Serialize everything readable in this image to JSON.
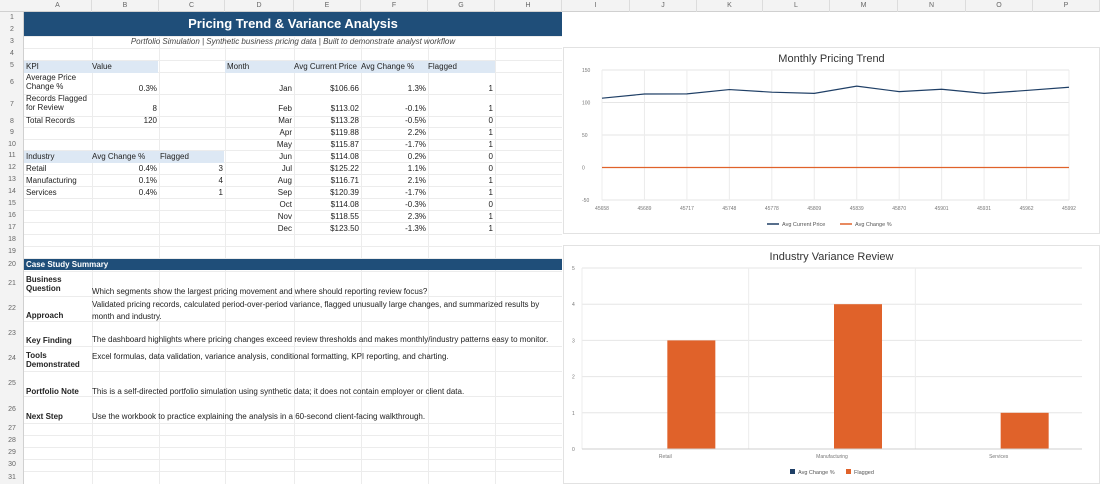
{
  "columns": [
    "A",
    "B",
    "C",
    "D",
    "E",
    "F",
    "G",
    "H",
    "I",
    "J",
    "K",
    "L",
    "M",
    "N",
    "O",
    "P"
  ],
  "rows": [
    "1",
    "2",
    "3",
    "4",
    "5",
    "6",
    "7",
    "8",
    "9",
    "10",
    "11",
    "12",
    "13",
    "14",
    "15",
    "16",
    "17",
    "18",
    "19",
    "20",
    "21",
    "22",
    "23",
    "24",
    "25",
    "26",
    "27",
    "28",
    "29",
    "30",
    "31"
  ],
  "title": "Pricing Trend & Variance Analysis",
  "subtitle": "Portfolio Simulation | Synthetic business pricing data | Built to demonstrate analyst workflow",
  "kpi": {
    "headers": [
      "KPI",
      "Value"
    ],
    "rows": [
      {
        "label": "Average Price Change %",
        "value": "0.3%"
      },
      {
        "label": "Records Flagged for Review",
        "value": "8"
      },
      {
        "label": "Total Records",
        "value": "120"
      }
    ]
  },
  "industry": {
    "headers": [
      "Industry",
      "Avg Change %",
      "Flagged"
    ],
    "rows": [
      {
        "name": "Retail",
        "change": "0.4%",
        "flagged": "3"
      },
      {
        "name": "Manufacturing",
        "change": "0.1%",
        "flagged": "4"
      },
      {
        "name": "Services",
        "change": "0.4%",
        "flagged": "1"
      }
    ]
  },
  "monthly": {
    "headers": [
      "Month",
      "Avg Current Price",
      "Avg Change %",
      "Flagged"
    ],
    "rows": [
      {
        "month": "Jan",
        "price": "$106.66",
        "change": "1.3%",
        "flagged": "1"
      },
      {
        "month": "Feb",
        "price": "$113.02",
        "change": "-0.1%",
        "flagged": "1"
      },
      {
        "month": "Mar",
        "price": "$113.28",
        "change": "-0.5%",
        "flagged": "0"
      },
      {
        "month": "Apr",
        "price": "$119.88",
        "change": "2.2%",
        "flagged": "1"
      },
      {
        "month": "May",
        "price": "$115.87",
        "change": "-1.7%",
        "flagged": "1"
      },
      {
        "month": "Jun",
        "price": "$114.08",
        "change": "0.2%",
        "flagged": "0"
      },
      {
        "month": "Jul",
        "price": "$125.22",
        "change": "1.1%",
        "flagged": "0"
      },
      {
        "month": "Aug",
        "price": "$116.71",
        "change": "2.1%",
        "flagged": "1"
      },
      {
        "month": "Sep",
        "price": "$120.39",
        "change": "-1.7%",
        "flagged": "1"
      },
      {
        "month": "Oct",
        "price": "$114.08",
        "change": "-0.3%",
        "flagged": "0"
      },
      {
        "month": "Nov",
        "price": "$118.55",
        "change": "2.3%",
        "flagged": "1"
      },
      {
        "month": "Dec",
        "price": "$123.50",
        "change": "-1.3%",
        "flagged": "1"
      }
    ]
  },
  "case_study": {
    "header": "Case Study Summary",
    "rows": [
      {
        "label": "Business Question",
        "text": "Which segments show the largest pricing movement and where should reporting review focus?"
      },
      {
        "label": "Approach",
        "text": "Validated pricing records, calculated period-over-period variance, flagged unusually large changes, and summarized results by month and industry."
      },
      {
        "label": "Key Finding",
        "text": "The dashboard highlights where pricing changes exceed review thresholds and makes monthly/industry patterns easy to monitor."
      },
      {
        "label": "Tools Demonstrated",
        "text": "Excel formulas, data validation, variance analysis, conditional formatting, KPI reporting, and charting."
      },
      {
        "label": "Portfolio Note",
        "text": "This is a self-directed portfolio simulation using synthetic data; it does not contain employer or client data."
      },
      {
        "label": "Next Step",
        "text": "Use the workbook to practice explaining the analysis in a 60-second client-facing walkthrough."
      }
    ]
  },
  "colors": {
    "header_blue": "#1f4e79",
    "table_header": "#dde8f4",
    "series_blue": "#1f3f66",
    "series_orange": "#e0622a"
  },
  "chart_data": [
    {
      "type": "line",
      "title": "Monthly Pricing Trend",
      "x": [
        "45658",
        "45689",
        "45717",
        "45748",
        "45778",
        "45809",
        "45839",
        "45870",
        "45901",
        "45931",
        "45962",
        "45992"
      ],
      "series": [
        {
          "name": "Avg Current Price",
          "values": [
            106.66,
            113.02,
            113.28,
            119.88,
            115.87,
            114.08,
            125.22,
            116.71,
            120.39,
            114.08,
            118.55,
            123.5
          ]
        },
        {
          "name": "Avg Change %",
          "values": [
            0.013,
            -0.001,
            -0.005,
            0.022,
            -0.017,
            0.002,
            0.011,
            0.021,
            -0.017,
            -0.003,
            0.023,
            -0.013
          ]
        }
      ],
      "ylim": [
        -50,
        150
      ],
      "yticks": [
        "150",
        "100",
        "50",
        "0",
        "-50"
      ],
      "legend": "bottom",
      "grid": true
    },
    {
      "type": "bar",
      "title": "Industry Variance Review",
      "categories": [
        "Retail",
        "Manufacturing",
        "Services"
      ],
      "series": [
        {
          "name": "Avg Change %",
          "values": [
            0.004,
            0.001,
            0.004
          ]
        },
        {
          "name": "Flagged",
          "values": [
            3,
            4,
            1
          ]
        }
      ],
      "ylim": [
        0,
        5
      ],
      "yticks": [
        "5",
        "4",
        "3",
        "2",
        "1",
        "0"
      ],
      "legend": "bottom",
      "grid": true
    }
  ]
}
